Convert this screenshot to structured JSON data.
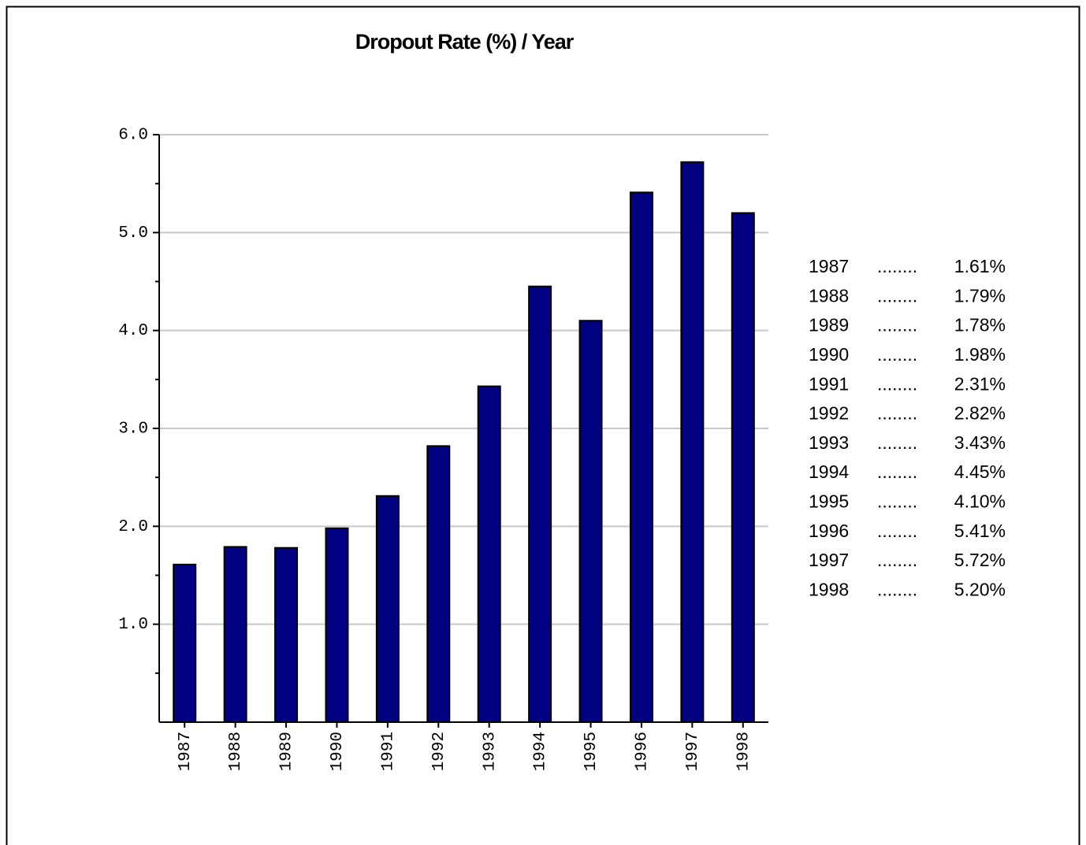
{
  "chart_data": {
    "type": "bar",
    "title": "Dropout Rate (%) / Year",
    "categories": [
      "1987",
      "1988",
      "1989",
      "1990",
      "1991",
      "1992",
      "1993",
      "1994",
      "1995",
      "1996",
      "1997",
      "1998"
    ],
    "values": [
      1.61,
      1.79,
      1.78,
      1.98,
      2.31,
      2.82,
      3.43,
      4.45,
      4.1,
      5.41,
      5.72,
      5.2
    ],
    "value_labels": [
      "1.61%",
      "1.79%",
      "1.78%",
      "1.98%",
      "2.31%",
      "2.82%",
      "3.43%",
      "4.45%",
      "4.10%",
      "5.41%",
      "5.72%",
      "5.20%"
    ],
    "leader": "........",
    "color": "#000080",
    "ylim": [
      0,
      6
    ],
    "yticks": [
      {
        "value": 1,
        "label": "1.0"
      },
      {
        "value": 2,
        "label": "2.0"
      },
      {
        "value": 3,
        "label": "3.0"
      },
      {
        "value": 4,
        "label": "4.0"
      },
      {
        "value": 5,
        "label": "5.0"
      },
      {
        "value": 6,
        "label": "6.0"
      }
    ],
    "grid": true
  }
}
